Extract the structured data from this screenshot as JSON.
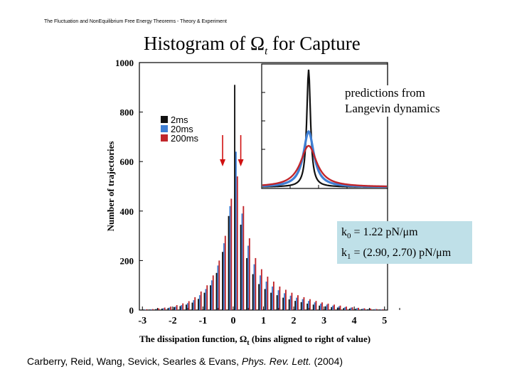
{
  "header": "The Fluctuation and NonEquilibrium Free Energy Theorems - Theory & Experiment",
  "title": {
    "prefix": "Histogram of ",
    "symbol": "Ω",
    "subscript": "t",
    "suffix": " for Capture"
  },
  "inset_label": {
    "line1": "predictions from",
    "line2": "Langevin dynamics"
  },
  "constants": {
    "k0_sym": "k",
    "k0_sub": "0",
    "k0_value": " = 1.22 pN/μm",
    "k1_sym": "k",
    "k1_sub": "1",
    "k1_value": " = (2.90, 2.70) pN/μm"
  },
  "citation": {
    "authors": "Carberry, Reid, Wang, Sevick, Searles & Evans, ",
    "journal": "Phys. Rev. Lett.",
    "year": " (2004)"
  },
  "colors": {
    "s2ms": "#111111",
    "s20ms": "#3f7fd4",
    "s200ms": "#c1262b",
    "arrow": "#d01010",
    "box": "#bfe0e8"
  },
  "chart_data": {
    "type": "bar",
    "xlabel": "The dissipation function, Ω",
    "xlabel_sub": "t",
    "xlabel_suffix": " (bins aligned to right of value)",
    "ylabel": "Number of trajectories",
    "xlim": [
      -3.1,
      5.1
    ],
    "ylim": [
      0,
      1000
    ],
    "xticks": [
      "-3",
      "-2",
      "-1",
      "0",
      "1",
      "2",
      "3",
      "4",
      "5"
    ],
    "yticks": [
      "0",
      "200",
      "400",
      "600",
      "800",
      "1000"
    ],
    "legend": {
      "position": "top-left",
      "entries": [
        "2ms",
        "20ms",
        "200ms"
      ]
    },
    "bin_width": 0.2,
    "x": [
      -3.0,
      -2.8,
      -2.6,
      -2.4,
      -2.2,
      -2.0,
      -1.8,
      -1.6,
      -1.4,
      -1.2,
      -1.0,
      -0.8,
      -0.6,
      -0.4,
      -0.2,
      0.0,
      0.2,
      0.4,
      0.6,
      0.8,
      1.0,
      1.2,
      1.4,
      1.6,
      1.8,
      2.0,
      2.2,
      2.4,
      2.6,
      2.8,
      3.0,
      3.2,
      3.4,
      3.6,
      3.8,
      4.0,
      4.2,
      4.4,
      4.6,
      4.8
    ],
    "series": [
      {
        "name": "2ms",
        "values": [
          2,
          2,
          4,
          6,
          8,
          12,
          16,
          22,
          30,
          45,
          70,
          100,
          150,
          235,
          380,
          910,
          345,
          210,
          145,
          105,
          85,
          70,
          60,
          50,
          43,
          37,
          32,
          26,
          22,
          18,
          15,
          12,
          10,
          8,
          6,
          5,
          4,
          3,
          2,
          2
        ]
      },
      {
        "name": "20ms",
        "values": [
          2,
          3,
          5,
          7,
          10,
          14,
          20,
          28,
          40,
          60,
          85,
          120,
          180,
          270,
          420,
          640,
          390,
          260,
          185,
          140,
          115,
          95,
          80,
          68,
          58,
          50,
          44,
          37,
          31,
          26,
          22,
          18,
          15,
          12,
          10,
          8,
          6,
          5,
          4,
          3
        ]
      },
      {
        "name": "200ms",
        "values": [
          3,
          4,
          7,
          10,
          14,
          20,
          27,
          36,
          52,
          75,
          100,
          140,
          200,
          300,
          450,
          540,
          420,
          290,
          210,
          165,
          135,
          115,
          95,
          82,
          70,
          60,
          52,
          44,
          37,
          31,
          26,
          22,
          18,
          14,
          11,
          9,
          7,
          6,
          4,
          3
        ]
      }
    ]
  }
}
